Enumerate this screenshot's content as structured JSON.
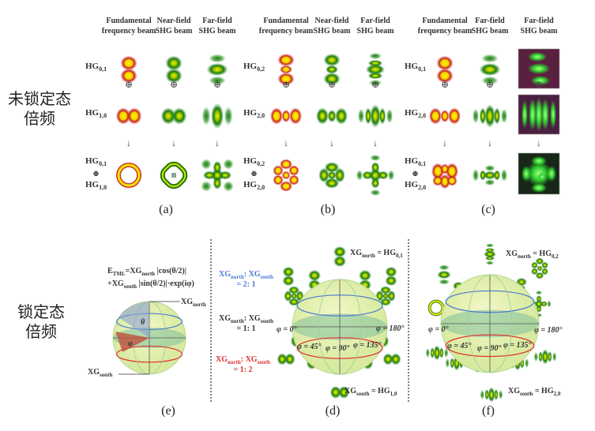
{
  "left_labels": {
    "unlocked_line1": "未锁定态",
    "unlocked_line2": "倍频",
    "locked_line1": "锁定态",
    "locked_line2": "倍频"
  },
  "panels_top": [
    {
      "caption": "(a)",
      "headers": [
        [
          "Fundamental",
          "frequency beam"
        ],
        [
          "Near-field",
          "SHG beam"
        ],
        [
          "Far-field",
          "SHG beam"
        ]
      ],
      "rows": [
        {
          "base": "HG",
          "sub": "0,1"
        },
        {
          "base": "HG",
          "sub": "1,0"
        },
        {
          "base1": "HG",
          "sub1": "0,1",
          "op": "⊕",
          "base2": "HG",
          "sub2": "1,0"
        }
      ]
    },
    {
      "caption": "(b)",
      "headers": [
        [
          "Fundamental",
          "frequency beam"
        ],
        [
          "Near-field",
          "SHG beam"
        ],
        [
          "Far-field",
          "SHG beam"
        ]
      ],
      "rows": [
        {
          "base": "HG",
          "sub": "0,2"
        },
        {
          "base": "HG",
          "sub": "2,0"
        },
        {
          "base1": "HG",
          "sub1": "0,2",
          "op": "⊕",
          "base2": "HG",
          "sub2": "2,0"
        }
      ]
    },
    {
      "caption": "(c)",
      "headers": [
        [
          "Fundamental",
          "frequency beam"
        ],
        [
          "Far-field",
          "SHG beam"
        ],
        [
          "Far-field",
          "SHG beam"
        ]
      ],
      "rows": [
        {
          "base": "HG",
          "sub": "0,1"
        },
        {
          "base": "HG",
          "sub": "2,0"
        },
        {
          "base1": "HG",
          "sub1": "0,1",
          "op": "⊕",
          "base2": "HG",
          "sub2": "2,0"
        }
      ]
    }
  ],
  "symbols": {
    "plus": "⊕",
    "arrow": "↓"
  },
  "panel_e": {
    "caption": "(e)",
    "formula_line1": "E",
    "formula_line1_sub": "TML",
    "formula_line1_rest": "=XG",
    "formula_north": "north",
    "formula_cos": "|cos(θ/2)|",
    "formula_line2": "+XG",
    "formula_south": "south",
    "formula_sin": "|sin(θ/2)|·exp(iφ)",
    "north_label": "XG",
    "north_sub": "north",
    "south_label": "XG",
    "south_sub": "south",
    "theta": "θ",
    "phi": "φ"
  },
  "panel_d": {
    "caption": "(d)",
    "north": "XG",
    "north_sub": "north",
    "north_eq": " = HG",
    "north_mode": "0,1",
    "south": "XG",
    "south_sub": "south",
    "south_eq": " = HG",
    "south_mode": "1,0",
    "ratio_blue": {
      "a": "XG",
      "a_sub": "north",
      "sep": ": XG",
      "b_sub": "south",
      "value": "= 2: 1"
    },
    "ratio_black": {
      "a": "XG",
      "a_sub": "north",
      "sep": ": XG",
      "b_sub": "south",
      "value": "= 1: 1"
    },
    "ratio_red": {
      "a": "XG",
      "a_sub": "north",
      "sep": ": XG",
      "b_sub": "south",
      "value": "= 1: 2"
    },
    "phi_labels": [
      "φ = 0°",
      "φ = 45°",
      "φ = 90°",
      "φ = 135°",
      "φ = 180°"
    ]
  },
  "panel_f": {
    "caption": "(f)",
    "north": "XG",
    "north_sub": "north",
    "north_eq": " = HG",
    "north_mode": "0,2",
    "south": "XG",
    "south_sub": "south",
    "south_eq": " = HG",
    "south_mode": "2,0",
    "phi_labels": [
      "φ = 0°",
      "φ = 45°",
      "φ = 90°",
      "φ = 135°",
      "φ = 180°"
    ]
  },
  "colors": {
    "fundamental_outer": "#c0201a",
    "fundamental_core": "#ffee00",
    "shg_outer": "#1a7a10",
    "shg_core": "#f2f000",
    "sphere_fill": "#eef4a8",
    "equator_band": "#7fbf9a",
    "ratio_blue": "#4a7bd0",
    "ratio_red": "#e03030"
  }
}
